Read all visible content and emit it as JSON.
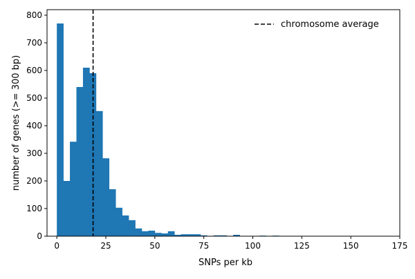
{
  "chart_data": {
    "type": "bar",
    "subtype": "histogram",
    "xlabel": "SNPs per kb",
    "ylabel": "number of genes (>= 300 bp)",
    "xlim": [
      -5,
      175
    ],
    "ylim": [
      0,
      820
    ],
    "xticks": [
      0,
      25,
      50,
      75,
      100,
      125,
      150,
      175
    ],
    "yticks": [
      0,
      100,
      200,
      300,
      400,
      500,
      600,
      700,
      800
    ],
    "bin_width": 3.33,
    "bins": [
      {
        "x0": 0.0,
        "count": 770
      },
      {
        "x0": 3.33,
        "count": 200
      },
      {
        "x0": 6.67,
        "count": 342
      },
      {
        "x0": 10.0,
        "count": 540
      },
      {
        "x0": 13.33,
        "count": 610
      },
      {
        "x0": 16.67,
        "count": 590
      },
      {
        "x0": 20.0,
        "count": 453
      },
      {
        "x0": 23.33,
        "count": 282
      },
      {
        "x0": 26.67,
        "count": 170
      },
      {
        "x0": 30.0,
        "count": 103
      },
      {
        "x0": 33.33,
        "count": 75
      },
      {
        "x0": 36.67,
        "count": 58
      },
      {
        "x0": 40.0,
        "count": 28
      },
      {
        "x0": 43.33,
        "count": 18
      },
      {
        "x0": 46.67,
        "count": 20
      },
      {
        "x0": 50.0,
        "count": 12
      },
      {
        "x0": 53.33,
        "count": 10
      },
      {
        "x0": 56.67,
        "count": 18
      },
      {
        "x0": 60.0,
        "count": 5
      },
      {
        "x0": 63.33,
        "count": 7
      },
      {
        "x0": 66.67,
        "count": 7
      },
      {
        "x0": 70.0,
        "count": 7
      },
      {
        "x0": 73.33,
        "count": 3
      },
      {
        "x0": 76.67,
        "count": 1
      },
      {
        "x0": 80.0,
        "count": 3
      },
      {
        "x0": 83.33,
        "count": 3
      },
      {
        "x0": 86.67,
        "count": 1
      },
      {
        "x0": 90.0,
        "count": 5
      },
      {
        "x0": 93.33,
        "count": 1
      },
      {
        "x0": 100.0,
        "count": 1
      },
      {
        "x0": 103.33,
        "count": 2
      },
      {
        "x0": 110.0,
        "count": 2
      },
      {
        "x0": 113.33,
        "count": 1
      },
      {
        "x0": 116.67,
        "count": 1
      }
    ],
    "bar_color": "#1f77b4",
    "reference_line": {
      "x": 18.5,
      "style": "dashed",
      "color": "#000000",
      "label": "chromosome average"
    },
    "legend": {
      "position": "top-right",
      "entries": [
        "chromosome average"
      ]
    },
    "grid": false
  }
}
